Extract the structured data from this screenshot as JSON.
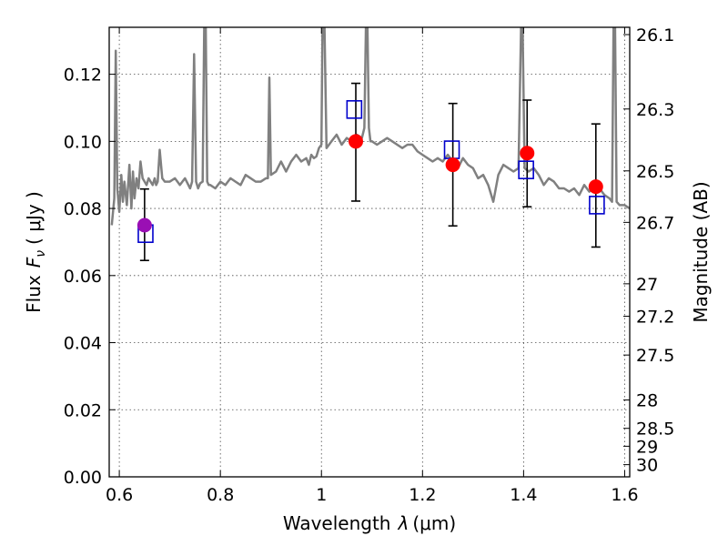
{
  "chart_data": {
    "type": "scatter",
    "title": "",
    "xlabel_prefix": "Wavelength",
    "xlabel_symbol": "λ",
    "xlabel_unit": "(μm)",
    "ylabel_prefix": "Flux",
    "ylabel_symbol": "F",
    "ylabel_subscript": "ν",
    "ylabel_unit": "( μJy )",
    "y2label": "Magnitude (AB)",
    "xlim": [
      0.58,
      1.61
    ],
    "ylim": [
      0.0,
      0.134
    ],
    "grid": true,
    "x_ticks": [
      0.6,
      0.8,
      1.0,
      1.2,
      1.4,
      1.6
    ],
    "x_tick_labels": [
      "0.6",
      "0.8",
      "1",
      "1.2",
      "1.4",
      "1.6"
    ],
    "y_ticks": [
      0.0,
      0.02,
      0.04,
      0.06,
      0.08,
      0.1,
      0.12
    ],
    "y_tick_labels": [
      "0.00",
      "0.02",
      "0.04",
      "0.06",
      "0.08",
      "0.10",
      "0.12"
    ],
    "mag_ticks": [
      26.1,
      26.3,
      26.5,
      26.7,
      27,
      27.2,
      27.5,
      28,
      28.5,
      29,
      30
    ],
    "mag_tick_labels": [
      "26.1",
      "26.3",
      "26.5",
      "26.7",
      "27",
      "27.2",
      "27.5",
      "28",
      "28.5",
      "29",
      "30"
    ],
    "colors": {
      "spectrum": "#808080",
      "observed_red": "#ff0000",
      "observed_purple": "#9a0fb4",
      "model": "#0000cc",
      "errorbar": "#000000"
    },
    "series": [
      {
        "name": "model spectrum",
        "kind": "line",
        "x": [
          0.585,
          0.59,
          0.593,
          0.596,
          0.6,
          0.604,
          0.607,
          0.61,
          0.615,
          0.62,
          0.624,
          0.627,
          0.63,
          0.634,
          0.638,
          0.642,
          0.646,
          0.65,
          0.654,
          0.658,
          0.662,
          0.666,
          0.67,
          0.673,
          0.676,
          0.68,
          0.685,
          0.69,
          0.7,
          0.71,
          0.72,
          0.73,
          0.74,
          0.744,
          0.748,
          0.752,
          0.756,
          0.76,
          0.765,
          0.768,
          0.771,
          0.774,
          0.777,
          0.78,
          0.79,
          0.8,
          0.81,
          0.82,
          0.83,
          0.84,
          0.85,
          0.86,
          0.87,
          0.88,
          0.89,
          0.894,
          0.897,
          0.9,
          0.91,
          0.92,
          0.93,
          0.94,
          0.95,
          0.96,
          0.97,
          0.975,
          0.98,
          0.985,
          0.99,
          0.995,
          1.0,
          1.002,
          1.004,
          1.006,
          1.01,
          1.02,
          1.03,
          1.04,
          1.05,
          1.06,
          1.07,
          1.08,
          1.085,
          1.088,
          1.091,
          1.094,
          1.097,
          1.1,
          1.11,
          1.12,
          1.13,
          1.14,
          1.15,
          1.16,
          1.17,
          1.18,
          1.19,
          1.2,
          1.21,
          1.22,
          1.23,
          1.24,
          1.25,
          1.26,
          1.27,
          1.28,
          1.29,
          1.3,
          1.31,
          1.32,
          1.33,
          1.34,
          1.35,
          1.36,
          1.37,
          1.38,
          1.39,
          1.395,
          1.398,
          1.402,
          1.41,
          1.42,
          1.43,
          1.44,
          1.45,
          1.46,
          1.47,
          1.48,
          1.49,
          1.5,
          1.51,
          1.52,
          1.53,
          1.54,
          1.55,
          1.56,
          1.57,
          1.575,
          1.578,
          1.581,
          1.584,
          1.59,
          1.6,
          1.61
        ],
        "y": [
          0.075,
          0.083,
          0.127,
          0.086,
          0.079,
          0.09,
          0.082,
          0.088,
          0.081,
          0.093,
          0.08,
          0.091,
          0.083,
          0.089,
          0.086,
          0.094,
          0.089,
          0.088,
          0.087,
          0.089,
          0.088,
          0.087,
          0.089,
          0.087,
          0.088,
          0.0975,
          0.089,
          0.088,
          0.088,
          0.089,
          0.087,
          0.089,
          0.086,
          0.088,
          0.126,
          0.088,
          0.086,
          0.0875,
          0.088,
          0.134,
          0.134,
          0.088,
          0.087,
          0.087,
          0.086,
          0.088,
          0.087,
          0.089,
          0.088,
          0.087,
          0.09,
          0.089,
          0.088,
          0.088,
          0.089,
          0.089,
          0.119,
          0.09,
          0.091,
          0.094,
          0.091,
          0.094,
          0.096,
          0.094,
          0.095,
          0.093,
          0.096,
          0.095,
          0.0955,
          0.098,
          0.099,
          0.134,
          0.134,
          0.134,
          0.098,
          0.1,
          0.102,
          0.099,
          0.101,
          0.1,
          0.102,
          0.101,
          0.104,
          0.134,
          0.134,
          0.104,
          0.1,
          0.1,
          0.099,
          0.1,
          0.101,
          0.1,
          0.099,
          0.098,
          0.099,
          0.099,
          0.097,
          0.096,
          0.095,
          0.094,
          0.095,
          0.094,
          0.096,
          0.094,
          0.092,
          0.095,
          0.093,
          0.092,
          0.089,
          0.09,
          0.087,
          0.082,
          0.09,
          0.093,
          0.092,
          0.091,
          0.092,
          0.134,
          0.134,
          0.092,
          0.091,
          0.092,
          0.09,
          0.087,
          0.089,
          0.088,
          0.086,
          0.086,
          0.085,
          0.086,
          0.084,
          0.087,
          0.085,
          0.086,
          0.086,
          0.084,
          0.083,
          0.082,
          0.134,
          0.134,
          0.082,
          0.081,
          0.081,
          0.08
        ]
      },
      {
        "name": "model photometry",
        "kind": "open-square",
        "x": [
          0.652,
          1.065,
          1.258,
          1.405,
          1.545
        ],
        "y": [
          0.0725,
          0.1095,
          0.0975,
          0.0915,
          0.081
        ]
      },
      {
        "name": "observed photometry",
        "kind": "filled-circle-errorbar",
        "x": [
          0.65,
          1.068,
          1.26,
          1.407,
          1.543
        ],
        "y": [
          0.075,
          0.1,
          0.093,
          0.0965,
          0.0865
        ],
        "yerr_low": [
          0.0645,
          0.0822,
          0.0748,
          0.0805,
          0.0685
        ],
        "yerr_high": [
          0.0858,
          0.1173,
          0.1113,
          0.1123,
          0.1052
        ],
        "colors": [
          "#9a0fb4",
          "#ff0000",
          "#ff0000",
          "#ff0000",
          "#ff0000"
        ]
      }
    ]
  }
}
